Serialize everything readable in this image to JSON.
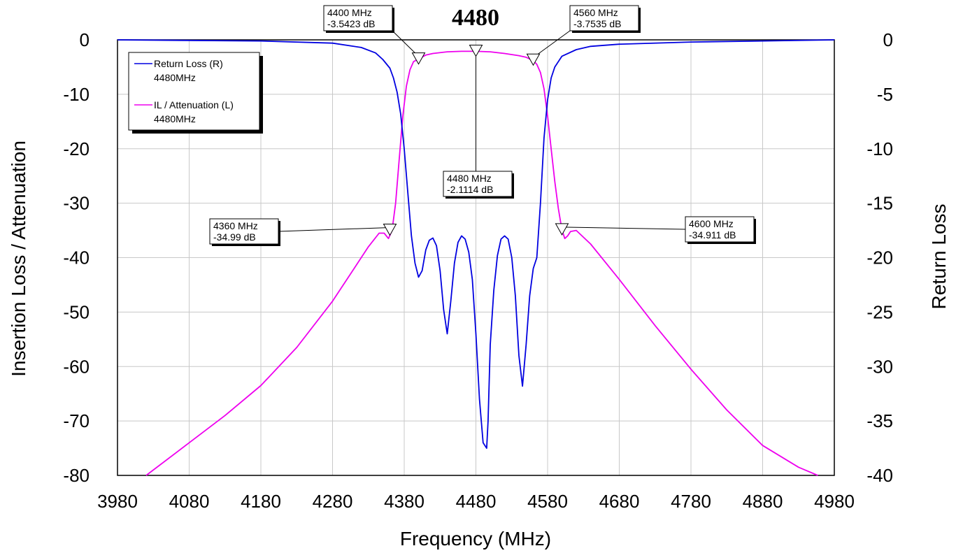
{
  "chart_data": {
    "type": "line",
    "title": "4480",
    "xlabel": "Frequency (MHz)",
    "ylabel_left": "Insertion Loss / Attenuation",
    "ylabel_right": "Return Loss",
    "xlim": [
      3980,
      4980
    ],
    "ylim_left": [
      -80,
      0
    ],
    "ylim_right": [
      -40,
      0
    ],
    "x_ticks": [
      3980,
      4080,
      4180,
      4280,
      4380,
      4480,
      4580,
      4680,
      4780,
      4880,
      4980
    ],
    "x_tick_labels": [
      "3980",
      "4080",
      "4180",
      "4280",
      "4380",
      "4480",
      "4580",
      "4680",
      "4780",
      "4880",
      "4980"
    ],
    "y_left_ticks": [
      0,
      -10,
      -20,
      -30,
      -40,
      -50,
      -60,
      -70,
      -80
    ],
    "y_left_tick_labels": [
      "0",
      "-10",
      "-20",
      "-30",
      "-40",
      "-50",
      "-60",
      "-70",
      "-80"
    ],
    "y_right_ticks": [
      0,
      -5,
      -10,
      -15,
      -20,
      -25,
      -30,
      -35,
      -40
    ],
    "y_right_tick_labels": [
      "0",
      "-5",
      "-10",
      "-15",
      "-20",
      "-25",
      "-30",
      "-35",
      "-40"
    ],
    "grid": true,
    "legend_placement": "top-left",
    "series": [
      {
        "name": "Return Loss (R)",
        "sublabel": "4480MHz",
        "axis": "right",
        "color": "#0000e0",
        "x": [
          3980,
          4080,
          4180,
          4280,
          4320,
          4340,
          4350,
          4360,
          4365,
          4370,
          4375,
          4380,
          4385,
          4390,
          4395,
          4400,
          4405,
          4410,
          4415,
          4420,
          4425,
          4430,
          4435,
          4440,
          4445,
          4450,
          4455,
          4460,
          4465,
          4470,
          4475,
          4480,
          4485,
          4490,
          4495,
          4497,
          4500,
          4505,
          4510,
          4515,
          4520,
          4525,
          4530,
          4535,
          4540,
          4545,
          4550,
          4555,
          4560,
          4565,
          4570,
          4575,
          4580,
          4585,
          4590,
          4600,
          4620,
          4640,
          4680,
          4780,
          4880,
          4980
        ],
        "values": [
          0,
          -0.05,
          -0.1,
          -0.3,
          -0.7,
          -1.2,
          -1.8,
          -2.6,
          -3.5,
          -4.8,
          -6.8,
          -10,
          -14,
          -18,
          -20.5,
          -21.8,
          -21.2,
          -19.3,
          -18.4,
          -18.2,
          -18.9,
          -21.2,
          -24.8,
          -27,
          -24,
          -20.5,
          -18.6,
          -18,
          -18.3,
          -19.5,
          -22,
          -27,
          -33,
          -37,
          -37.5,
          -35,
          -28,
          -23,
          -19.8,
          -18.3,
          -18,
          -18.3,
          -20,
          -23.5,
          -29,
          -31.8,
          -28,
          -23.5,
          -21,
          -20,
          -15,
          -9,
          -5.5,
          -3.5,
          -2.5,
          -1.5,
          -0.9,
          -0.6,
          -0.4,
          -0.2,
          -0.1,
          0
        ]
      },
      {
        "name": "IL / Attenuation (L)",
        "sublabel": "4480MHz",
        "axis": "left",
        "color": "#ee00ee",
        "x": [
          4020,
          4080,
          4130,
          4180,
          4230,
          4280,
          4310,
          4330,
          4345,
          4352,
          4358,
          4363,
          4368,
          4373,
          4378,
          4383,
          4388,
          4393,
          4400,
          4410,
          4420,
          4440,
          4460,
          4480,
          4500,
          4520,
          4540,
          4550,
          4560,
          4565,
          4570,
          4575,
          4580,
          4585,
          4590,
          4595,
          4600,
          4604,
          4608,
          4612,
          4620,
          4640,
          4680,
          4730,
          4780,
          4830,
          4880,
          4930,
          4957
        ],
        "values": [
          -80,
          -74,
          -69,
          -63.5,
          -56.5,
          -48,
          -42,
          -38,
          -35.5,
          -35.5,
          -36.5,
          -35,
          -30,
          -22,
          -14,
          -8.5,
          -5.5,
          -4,
          -3.5,
          -2.8,
          -2.5,
          -2.2,
          -2.1,
          -2.1,
          -2.2,
          -2.5,
          -2.9,
          -3.2,
          -3.8,
          -4.5,
          -6,
          -9,
          -14,
          -20,
          -26,
          -31,
          -34.9,
          -36.5,
          -36,
          -35.2,
          -35,
          -37.5,
          -44,
          -52.5,
          -60.5,
          -68,
          -74.5,
          -78.5,
          -80
        ]
      }
    ],
    "markers": [
      {
        "x": 4360,
        "y": -34.99,
        "label_freq": "4360 MHz",
        "label_db": "-34.99 dB"
      },
      {
        "x": 4400,
        "y": -3.5423,
        "label_freq": "4400 MHz",
        "label_db": "-3.5423 dB"
      },
      {
        "x": 4480,
        "y": -2.1114,
        "label_freq": "4480 MHz",
        "label_db": "-2.1114 dB"
      },
      {
        "x": 4560,
        "y": -3.7535,
        "label_freq": "4560 MHz",
        "label_db": "-3.7535 dB"
      },
      {
        "x": 4600,
        "y": -34.911,
        "label_freq": "4600 MHz",
        "label_db": "-34.911 dB"
      }
    ]
  }
}
